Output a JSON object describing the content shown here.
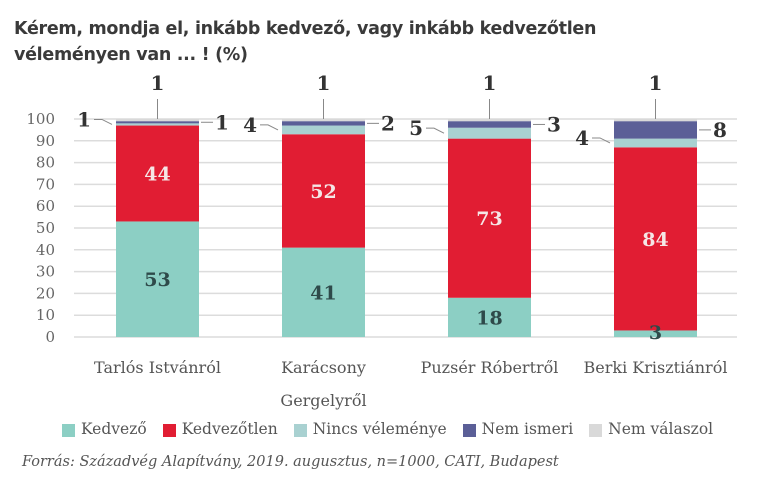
{
  "title": "Kérem, mondja el, inkább kedvező, vagy inkább kedvezőtlen véleményen van ... ! (%)",
  "source": "Forrás: Századvég Alapítvány, 2019. augusztus, n=1000, CATI, Budapest",
  "chart_data": {
    "type": "bar",
    "stacked": true,
    "title": "Kérem, mondja el, inkább kedvező, vagy inkább kedvezőtlen véleményen van ... ! (%)",
    "xlabel": "",
    "ylabel": "",
    "ylim": [
      0,
      100
    ],
    "yticks": [
      0,
      10,
      20,
      30,
      40,
      50,
      60,
      70,
      80,
      90,
      100
    ],
    "grid": true,
    "legend_position": "bottom",
    "categories": [
      [
        "Tarlós Istvánról"
      ],
      [
        "Karácsony",
        "Gergelyről"
      ],
      [
        "Puzsér Róbertről"
      ],
      [
        "Berki Krisztiánról"
      ]
    ],
    "series": [
      {
        "name": "Kedvező",
        "color": "#8ccfc4",
        "values": [
          53,
          41,
          18,
          3
        ]
      },
      {
        "name": "Kedvezőtlen",
        "color": "#e11d33",
        "values": [
          44,
          52,
          73,
          84
        ]
      },
      {
        "name": "Nincs véleménye",
        "color": "#a9d1d1",
        "values": [
          1,
          4,
          5,
          4
        ]
      },
      {
        "name": "Nem ismeri",
        "color": "#5b5f97",
        "values": [
          1,
          2,
          3,
          8
        ]
      },
      {
        "name": "Nem válaszol",
        "color": "#d9d9d9",
        "values": [
          1,
          1,
          1,
          1
        ]
      }
    ]
  }
}
